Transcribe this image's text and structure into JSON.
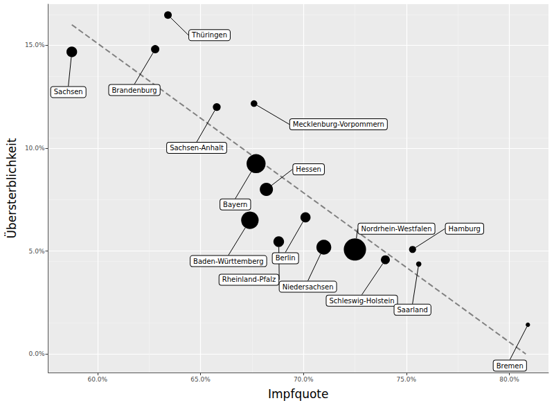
{
  "chart_data": {
    "type": "scatter",
    "x_label": "Impfquote",
    "y_label": "Übersterblichkeit",
    "names": [
      "Sachsen",
      "Thüringen",
      "Brandenburg",
      "Sachsen-Anhalt",
      "Mecklenburg-Vorpommern",
      "Bayern",
      "Hessen",
      "Baden-Württemberg",
      "Rheinland-Pfalz",
      "Berlin",
      "Niedersachsen",
      "Nordrhein-Westfalen",
      "Schleswig-Holstein",
      "Hamburg",
      "Saarland",
      "Bremen"
    ],
    "x": [
      58.75,
      63.42,
      62.8,
      65.79,
      67.6,
      67.7,
      68.2,
      67.4,
      68.8,
      70.1,
      70.99,
      72.5,
      73.98,
      75.3,
      75.6,
      80.9
    ],
    "values": [
      14.68,
      16.47,
      14.81,
      12.0,
      12.17,
      9.25,
      8.0,
      6.5,
      5.46,
      6.64,
      5.19,
      5.08,
      4.58,
      5.08,
      4.37,
      1.42
    ],
    "size": [
      4.1,
      2.1,
      2.5,
      2.2,
      1.6,
      13.1,
      6.3,
      11.1,
      4.1,
      3.7,
      8.0,
      17.9,
      2.9,
      1.8,
      1.0,
      0.7
    ],
    "color": "#000000",
    "marker": "circle",
    "trend_line": {
      "x": [
        58.75,
        80.8
      ],
      "y": [
        16.0,
        0.0
      ],
      "line_style": "dashed",
      "color": "#808080"
    },
    "xlim": [
      57.6,
      81.9
    ],
    "ylim": [
      -0.9,
      17.0
    ],
    "xticks": [
      {
        "value": 60,
        "label": "60.0%"
      },
      {
        "value": 65,
        "label": "65.0%"
      },
      {
        "value": 70,
        "label": "70.0%"
      },
      {
        "value": 75,
        "label": "75.0%"
      },
      {
        "value": 80,
        "label": "80.0%"
      }
    ],
    "yticks": [
      {
        "value": 0,
        "label": "0.0%"
      },
      {
        "value": 5,
        "label": "5.0%"
      },
      {
        "value": 10,
        "label": "10.0%"
      },
      {
        "value": 15,
        "label": "15.0%"
      }
    ],
    "grid": true
  }
}
